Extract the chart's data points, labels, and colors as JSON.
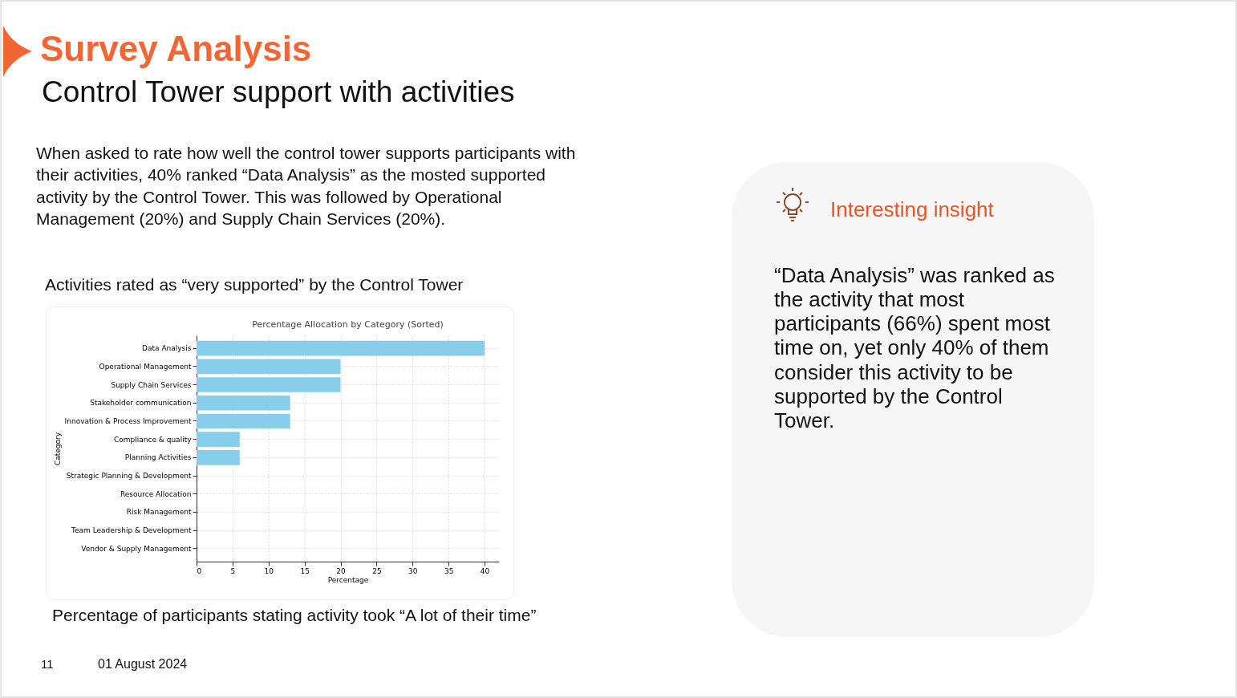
{
  "chart_data": {
    "type": "bar",
    "orientation": "horizontal",
    "title": "Survey Analysis",
    "subtitle": "Control Tower support with activities",
    "xlabel": "Percentage",
    "ylabel": "Category",
    "categories": [
      "Data Analysis",
      "Operational Management",
      "Supply Chain Services",
      "Stakeholder communication",
      "Innovation & Process Improvement",
      "Compliance & quality",
      "Planning Activities",
      "Strategic Planning & Development",
      "Resource Allocation",
      "Risk Management",
      "Team Leadership & Development",
      "Vendor & Supply Management"
    ],
    "values": [
      40,
      20,
      20,
      13,
      13,
      6,
      6,
      0,
      0,
      0,
      0,
      0
    ],
    "color": "#87ceeb",
    "xlim": [
      0,
      42
    ],
    "xticks": [
      0,
      5,
      10,
      15,
      20,
      25,
      30,
      35,
      40
    ],
    "grid": true,
    "annotations": [
      "When asked to rate how well the control tower supports participants with their activities, 40% ranked “Data Analysis” as the mosted supported activity by the Control Tower. This was followed by Operational Management (20%) and Supply Chain Services (20%).",
      "Activities rated as “very supported” by the Control Tower",
      "Percentage Allocation by Category (Sorted)",
      "Percentage of participants stating activity took “A lot of their time”",
      "Interesting insight",
      "“Data Analysis” was ranked as the activity that most participants (66%) spent most time on, yet only 40% of them consider this activity to be supported by the Control Tower.",
      "11",
      "01 August 2024"
    ]
  }
}
